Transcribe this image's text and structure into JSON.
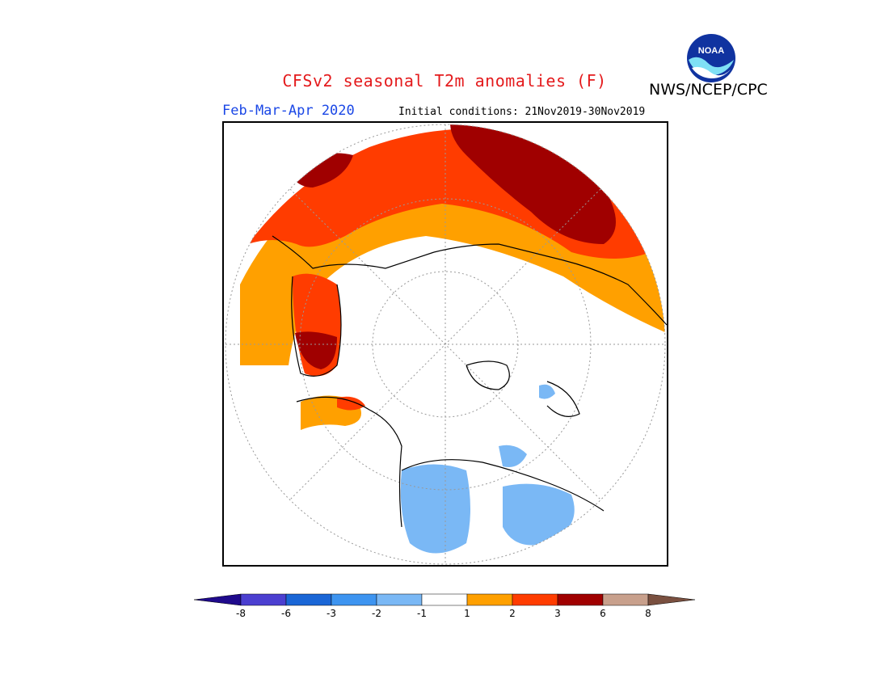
{
  "title": "CFSv2 seasonal T2m anomalies (F)",
  "organization": "NWS/NCEP/CPC",
  "logo_text": "NOAA",
  "season": "Feb-Mar-Apr 2020",
  "initial_conditions": "Initial conditions: 21Nov2019-30Nov2019",
  "map": {
    "projection": "north-polar-stereographic",
    "region": "Northern Hemisphere",
    "features": [
      "coastlines",
      "dotted graticule"
    ]
  },
  "legend": {
    "ticks": [
      "-8",
      "-6",
      "-3",
      "-2",
      "-1",
      "1",
      "2",
      "3",
      "6",
      "8"
    ],
    "colors": [
      "#1f0a8c",
      "#4b3fd0",
      "#1a66d6",
      "#3d94f0",
      "#7ab8f5",
      "#ffffff",
      "#ffa000",
      "#ff3c00",
      "#a00000",
      "#c8a08c",
      "#7a5040"
    ]
  }
}
